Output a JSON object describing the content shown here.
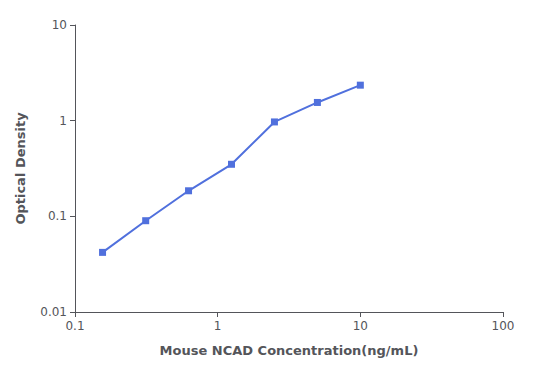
{
  "chart_data": {
    "type": "line",
    "x": [
      0.156,
      0.313,
      0.625,
      1.25,
      2.5,
      5.0,
      10.0
    ],
    "values": [
      0.042,
      0.09,
      0.185,
      0.35,
      0.97,
      1.55,
      2.35
    ],
    "xlabel": "Mouse NCAD Concentration(ng/mL)",
    "ylabel": "Optical Density",
    "xlim": [
      0.1,
      100
    ],
    "ylim": [
      0.01,
      10
    ],
    "xticks": [
      0.1,
      1,
      10,
      100
    ],
    "yticks": [
      0.01,
      0.1,
      1,
      10
    ],
    "log": true,
    "grid": false,
    "marker": "square"
  }
}
